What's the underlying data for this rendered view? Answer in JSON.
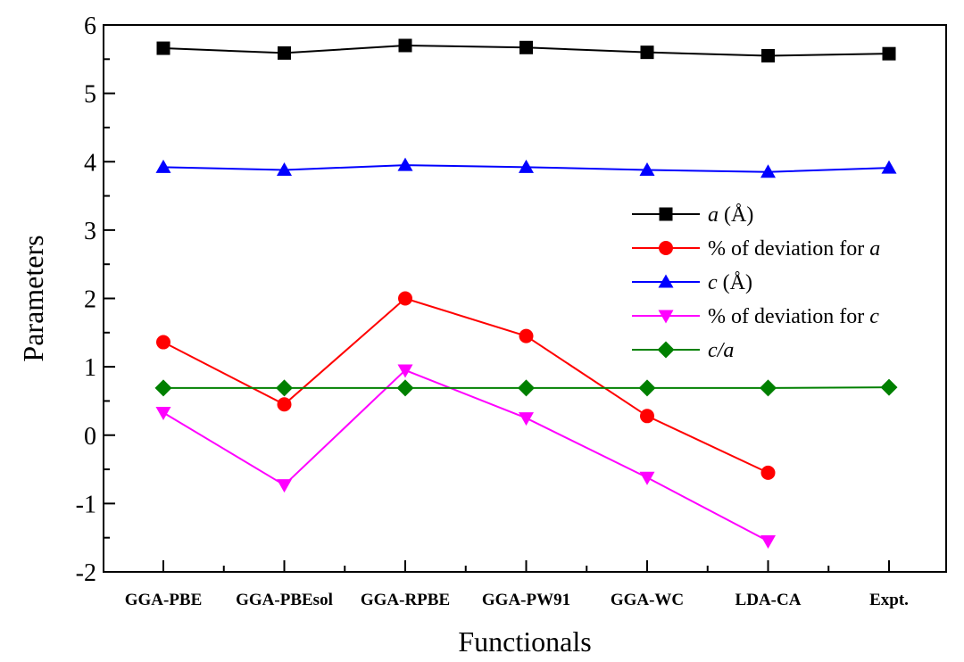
{
  "chart_data": {
    "type": "line",
    "categories": [
      "GGA-PBE",
      "GGA-PBEsol",
      "GGA-RPBE",
      "GGA-PW91",
      "GGA-WC",
      "LDA-CA",
      "Expt."
    ],
    "xlabel": "Functionals",
    "ylabel": "Parameters",
    "ylim": [
      -2,
      6
    ],
    "yticks": [
      -2,
      -1,
      0,
      1,
      2,
      3,
      4,
      5,
      6
    ],
    "ytick_labels": [
      "-2",
      "-1",
      "0",
      "1",
      "2",
      "3",
      "4",
      "5",
      "6"
    ],
    "legend_position": "right",
    "series": [
      {
        "key": "a",
        "legend": [
          {
            "text": "a",
            "italic": true
          },
          {
            "text": " (Å)",
            "italic": false
          }
        ],
        "color": "#000000",
        "marker": "square",
        "values": [
          5.66,
          5.59,
          5.7,
          5.67,
          5.6,
          5.55,
          5.58
        ]
      },
      {
        "key": "dev_a",
        "legend": [
          {
            "text": "% of deviation for ",
            "italic": false
          },
          {
            "text": "a",
            "italic": true
          }
        ],
        "color": "#ff0000",
        "marker": "circle",
        "values": [
          1.36,
          0.45,
          2.0,
          1.45,
          0.28,
          -0.55,
          null
        ]
      },
      {
        "key": "c",
        "legend": [
          {
            "text": "c",
            "italic": true
          },
          {
            "text": " (Å)",
            "italic": false
          }
        ],
        "color": "#0000ff",
        "marker": "triangle-up",
        "values": [
          3.92,
          3.88,
          3.95,
          3.92,
          3.88,
          3.85,
          3.91
        ]
      },
      {
        "key": "dev_c",
        "legend": [
          {
            "text": "% of deviation for ",
            "italic": false
          },
          {
            "text": "c",
            "italic": true
          }
        ],
        "color": "#ff00ff",
        "marker": "triangle-down",
        "values": [
          0.33,
          -0.73,
          0.95,
          0.25,
          -0.62,
          -1.55,
          null
        ]
      },
      {
        "key": "ca",
        "legend": [
          {
            "text": "c/a",
            "italic": true
          }
        ],
        "color": "#008000",
        "marker": "diamond",
        "values": [
          0.69,
          0.69,
          0.69,
          0.69,
          0.69,
          0.69,
          0.7
        ]
      }
    ]
  }
}
